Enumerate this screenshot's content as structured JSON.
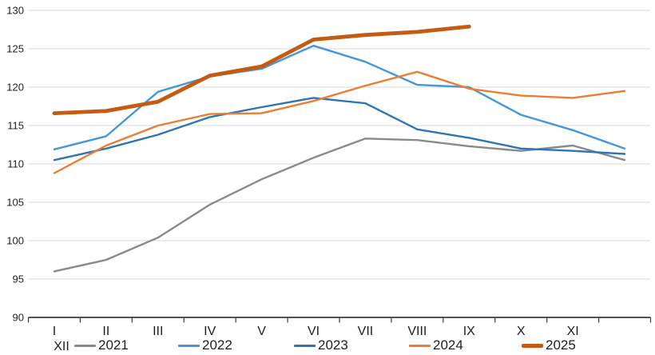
{
  "chart_data": {
    "type": "line",
    "title": "",
    "xlabel": "",
    "ylabel": "",
    "ylim": [
      90,
      130
    ],
    "y_tick_step": 5,
    "y_tick_labels": [
      "90",
      "95",
      "100",
      "105",
      "110",
      "115",
      "120",
      "125",
      "130"
    ],
    "grid": true,
    "legend_position": "bottom",
    "categories": [
      "I",
      "II",
      "III",
      "IV",
      "V",
      "VI",
      "VII",
      "VIII",
      "IX",
      "X",
      "XI",
      "XII"
    ],
    "wrapped_last_category_label": "XII",
    "series": [
      {
        "name": "2021",
        "color": "#8A8A8A",
        "thick": false,
        "values": [
          96.0,
          97.5,
          100.4,
          104.7,
          108.0,
          110.8,
          113.3,
          113.1,
          112.3,
          111.7,
          112.4,
          110.5
        ]
      },
      {
        "name": "2022",
        "color": "#4596DB",
        "thick": false,
        "values": [
          111.9,
          113.6,
          119.4,
          121.4,
          122.4,
          125.4,
          123.3,
          120.3,
          120.0,
          116.4,
          114.4,
          112.0
        ]
      },
      {
        "name": "2023",
        "color": "#2E75B6",
        "thick": false,
        "values": [
          110.5,
          112.0,
          113.8,
          116.1,
          117.4,
          118.6,
          117.9,
          114.5,
          113.4,
          112.0,
          111.7,
          111.3
        ]
      },
      {
        "name": "2024",
        "color": "#ED7D31",
        "thick": false,
        "values": [
          108.8,
          112.4,
          115.0,
          116.5,
          116.6,
          118.2,
          120.2,
          122.0,
          119.8,
          118.9,
          118.6,
          119.5
        ]
      },
      {
        "name": "2025",
        "color": "#C55A11",
        "thick": true,
        "values": [
          116.6,
          116.9,
          118.1,
          121.5,
          122.7,
          126.2,
          126.8,
          127.2,
          127.9,
          null,
          null,
          null
        ]
      }
    ],
    "colors": {
      "gridline": "#D9D9D9",
      "axis_line": "#3B3B3B",
      "tick_label": "#1F1F1F"
    }
  }
}
